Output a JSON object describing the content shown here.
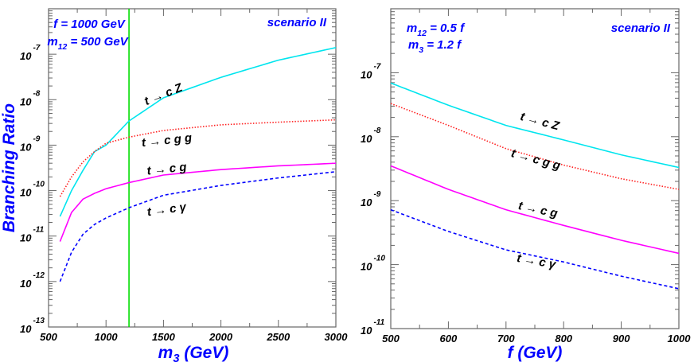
{
  "chart_data": [
    {
      "type": "line",
      "xlabel": {
        "main": "m",
        "sub": "3",
        "rest": " (GeV)"
      },
      "ylabel": "Branching Ratio",
      "xlim": [
        500,
        3000
      ],
      "ylim": [
        1e-13,
        1e-06
      ],
      "yscale": "log",
      "xticks": [
        500,
        1000,
        1500,
        2000,
        2500,
        3000
      ],
      "yticks_exp": [
        -13,
        -12,
        -11,
        -10,
        -9,
        -8,
        -7
      ],
      "grid": false,
      "annotations": [
        {
          "main": "f = 1000 GeV",
          "sub": "",
          "rest": ""
        },
        {
          "main": "m",
          "sub": "12",
          "rest": " = 500 GeV"
        },
        {
          "main": "scenario II",
          "sub": "",
          "rest": ""
        }
      ],
      "vertical_line": {
        "x": 1200,
        "color": "#00dd00"
      },
      "x": [
        600,
        700,
        800,
        900,
        1000,
        1200,
        1500,
        2000,
        2500,
        3000
      ],
      "series": [
        {
          "name": "t → c Z",
          "color": "#00e5ee",
          "style": "solid",
          "values": [
            2.7e-11,
            1e-10,
            2.8e-10,
            7.2e-10,
            1e-09,
            3.4e-09,
            1.1e-08,
            3.1e-08,
            7.4e-08,
            1.4e-07
          ]
        },
        {
          "name": "t → c g g",
          "color": "#ff2020",
          "style": "dotted",
          "values": [
            7.4e-11,
            2e-10,
            4.3e-10,
            7.2e-10,
            1.1e-09,
            1.5e-09,
            2.1e-09,
            2.8e-09,
            3.2e-09,
            3.6e-09
          ]
        },
        {
          "name": "t → c g",
          "color": "#ff00ff",
          "style": "solid",
          "values": [
            7.6e-12,
            3.3e-11,
            6.5e-11,
            8.7e-11,
            1.1e-10,
            1.5e-10,
            2.2e-10,
            2.9e-10,
            3.5e-10,
            4e-10
          ]
        },
        {
          "name": "t → c γ",
          "color": "#0000ff",
          "style": "dashed",
          "values": [
            1e-12,
            4.4e-12,
            1.1e-11,
            1.8e-11,
            2.5e-11,
            4.2e-11,
            7.9e-11,
            1.3e-10,
            1.9e-10,
            2.6e-10
          ]
        }
      ]
    },
    {
      "type": "line",
      "xlabel": {
        "main": "f (GeV)",
        "sub": "",
        "rest": ""
      },
      "ylabel": "",
      "xlim": [
        500,
        1000
      ],
      "ylim": [
        1e-11,
        1e-06
      ],
      "yscale": "log",
      "xticks": [
        500,
        600,
        700,
        800,
        900,
        1000
      ],
      "yticks_exp": [
        -11,
        -10,
        -9,
        -8,
        -7
      ],
      "grid": false,
      "annotations": [
        {
          "main": "m",
          "sub": "12",
          "rest": " = 0.5 f"
        },
        {
          "main": "m",
          "sub": "3",
          "rest": " = 1.2 f"
        },
        {
          "main": "scenario II",
          "sub": "",
          "rest": ""
        }
      ],
      "x": [
        500,
        600,
        700,
        800,
        900,
        1000
      ],
      "series": [
        {
          "name": "t → c Z",
          "color": "#00e5ee",
          "style": "solid",
          "values": [
            6.9e-08,
            3.1e-08,
            1.5e-08,
            8.9e-09,
            5.2e-09,
            3.3e-09
          ]
        },
        {
          "name": "t → c g g",
          "color": "#ff2020",
          "style": "dotted",
          "values": [
            3.3e-08,
            1.5e-08,
            6.5e-09,
            3.6e-09,
            2.2e-09,
            1.5e-09
          ]
        },
        {
          "name": "t → c g",
          "color": "#ff00ff",
          "style": "solid",
          "values": [
            3.5e-09,
            1.5e-09,
            7.2e-10,
            4.1e-10,
            2.4e-10,
            1.5e-10
          ]
        },
        {
          "name": "t → c γ",
          "color": "#0000ff",
          "style": "dashed",
          "values": [
            7.2e-10,
            3.3e-10,
            1.7e-10,
            1.1e-10,
            6.6e-11,
            4.2e-11
          ]
        }
      ]
    }
  ]
}
